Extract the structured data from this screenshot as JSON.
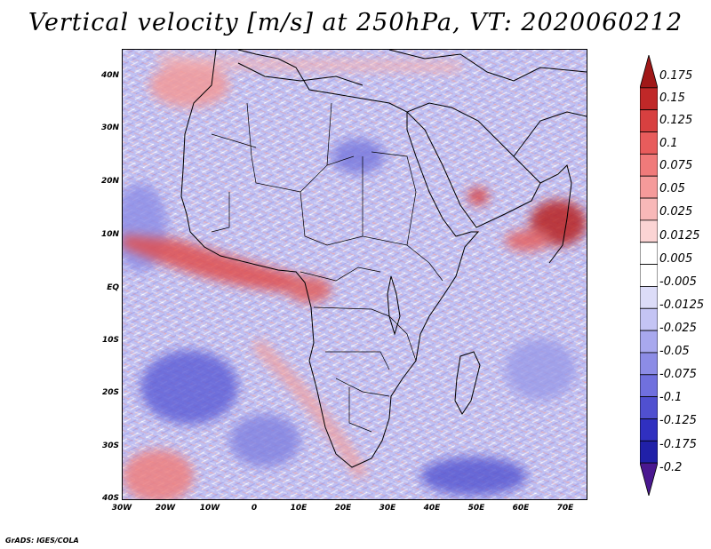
{
  "title": "Vertical velocity [m/s] at 250hPa, VT: 2020060212",
  "credit": "GrADS: IGES/COLA",
  "map": {
    "lon_range": [
      -30,
      75
    ],
    "lat_range": [
      -40,
      45
    ],
    "lat_ticks": [
      "40N",
      "30N",
      "20N",
      "10N",
      "EQ",
      "10S",
      "20S",
      "30S",
      "40S"
    ],
    "lon_ticks": [
      "30W",
      "20W",
      "10W",
      "0",
      "10E",
      "20E",
      "30E",
      "40E",
      "50E",
      "60E",
      "70E"
    ]
  },
  "colorbar": {
    "levels": [
      "0.175",
      "0.15",
      "0.125",
      "0.1",
      "0.075",
      "0.05",
      "0.025",
      "0.0125",
      "0.005",
      "-0.005",
      "-0.0125",
      "-0.025",
      "-0.05",
      "-0.075",
      "-0.1",
      "-0.125",
      "-0.175",
      "-0.2"
    ],
    "colors": [
      "#a01818",
      "#c02828",
      "#d84040",
      "#e85c5c",
      "#f07a7a",
      "#f59a9a",
      "#f8b8b8",
      "#fbd4d4",
      "#ffffff",
      "#ffffff",
      "#dcdcf8",
      "#c4c4f4",
      "#a8a8ee",
      "#8c8ce6",
      "#7070de",
      "#5050d0",
      "#3030c0",
      "#2020a8",
      "#4a1890"
    ]
  }
}
